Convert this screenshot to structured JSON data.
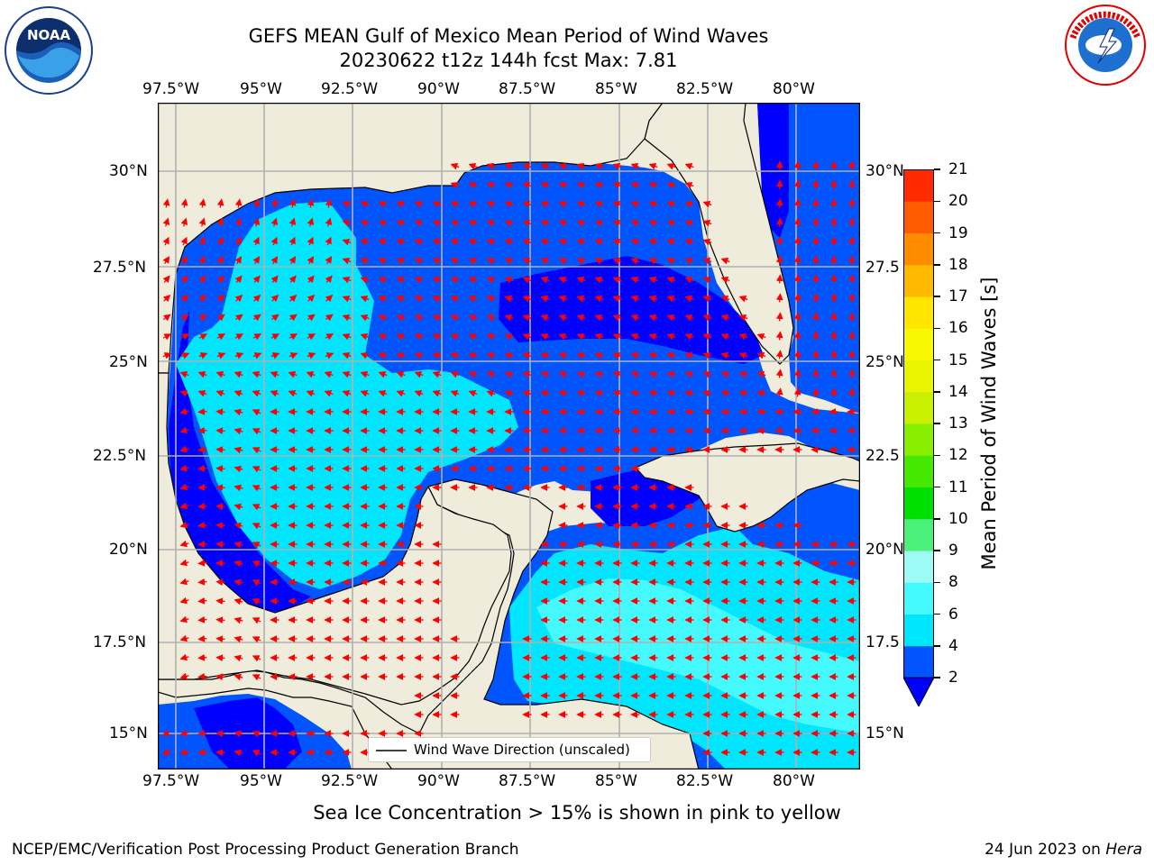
{
  "header": {
    "title": "GEFS MEAN Gulf of Mexico Mean Period of Wind Waves",
    "subtitle": "20230622 t12z 144h fcst   Max: 7.81"
  },
  "map": {
    "lon_ticks": [
      "97.5°W",
      "95°W",
      "92.5°W",
      "90°W",
      "87.5°W",
      "85°W",
      "82.5°W",
      "80°W"
    ],
    "lat_ticks_left": [
      "30°N",
      "27.5°N",
      "25°N",
      "22.5°N",
      "20°N",
      "17.5°N",
      "15°N"
    ],
    "lat_ticks_right": [
      "30°N",
      "27.5",
      "25°N",
      "22.5",
      "20°N",
      "17.5",
      "15°N"
    ],
    "legend": "Wind Wave Direction (unscaled)",
    "land_color": "#efecdc",
    "coast_color": "#000000",
    "arrow_color": "#ff0000",
    "grid_color": "#b0b0b0"
  },
  "colorbar": {
    "label": "Mean Period of Wind Waves [s]",
    "ticks": [
      "2",
      "4",
      "6",
      "8",
      "9",
      "10",
      "11",
      "12",
      "13",
      "14",
      "15",
      "16",
      "17",
      "18",
      "19",
      "20",
      "21"
    ],
    "colors": [
      "#0055ff",
      "#00e6ff",
      "#44faff",
      "#9dfbf5",
      "#4af07a",
      "#00e000",
      "#44e800",
      "#88ee00",
      "#c8f000",
      "#e8f400",
      "#f8f800",
      "#ffe600",
      "#ffba00",
      "#ff8c00",
      "#ff5a00",
      "#ff2a00"
    ],
    "under_color": "#0000ff"
  },
  "footer": {
    "note": "Sea Ice Concentration > 15% is shown in pink to yellow",
    "credit": "NCEP/EMC/Verification Post Processing Product Generation Branch",
    "date": "24 Jun 2023 on ",
    "host": "Hera"
  },
  "logos": {
    "left": "noaa-logo",
    "left_text": "NOAA",
    "right": "nws-logo",
    "right_text": "NATIONAL WEATHER SERVICE"
  }
}
